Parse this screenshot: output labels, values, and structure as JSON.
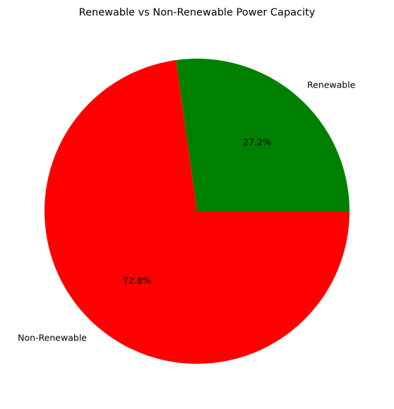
{
  "chart_data": {
    "type": "pie",
    "title": "Renewable vs Non-Renewable Power Capacity",
    "labels": [
      "Renewable",
      "Non-Renewable"
    ],
    "values": [
      27.2,
      72.8
    ],
    "percent_labels": [
      "27.2%",
      "72.8%"
    ],
    "colors": [
      "#008000",
      "#ff0000"
    ],
    "start_angle_deg": 0,
    "direction": "counterclockwise",
    "legend": "none"
  }
}
